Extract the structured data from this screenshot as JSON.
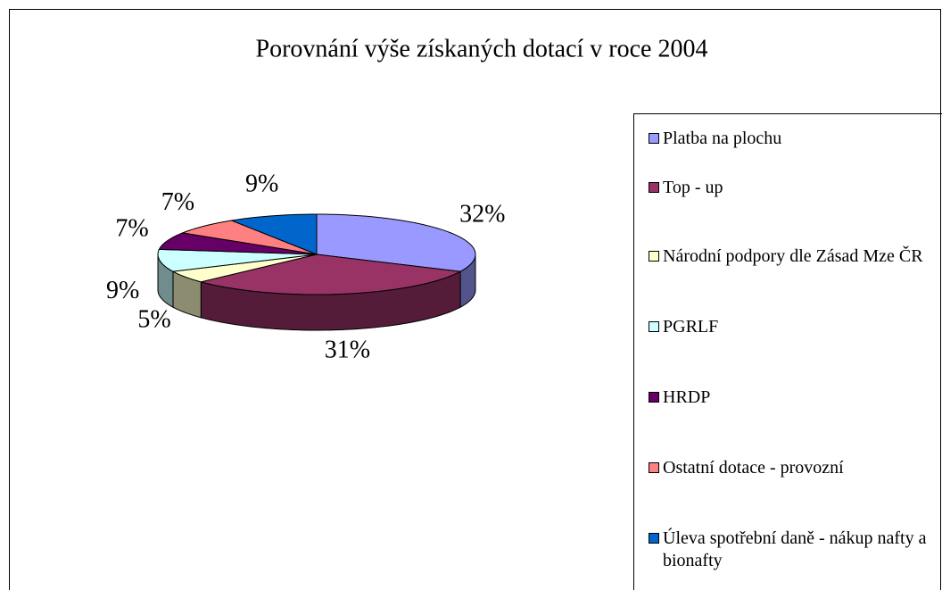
{
  "chart_data": {
    "type": "pie",
    "title": "Porovnání výše získaných dotací v roce 2004",
    "categories": [
      "Platba na plochu",
      "Top - up",
      "Národní podpory dle Zásad Mze ČR",
      "PGRLF",
      "HRDP",
      "Ostatní dotace - provozní",
      "Úleva spotřební daně - nákup nafty a bionafty"
    ],
    "values": [
      32,
      31,
      5,
      9,
      7,
      7,
      9
    ],
    "value_labels": [
      "32%",
      "31%",
      "5%",
      "9%",
      "7%",
      "7%",
      "9%"
    ],
    "colors": [
      "#9999ff",
      "#993366",
      "#ffffcc",
      "#ccffff",
      "#660066",
      "#ff8080",
      "#0066cc"
    ],
    "legend": "right"
  }
}
